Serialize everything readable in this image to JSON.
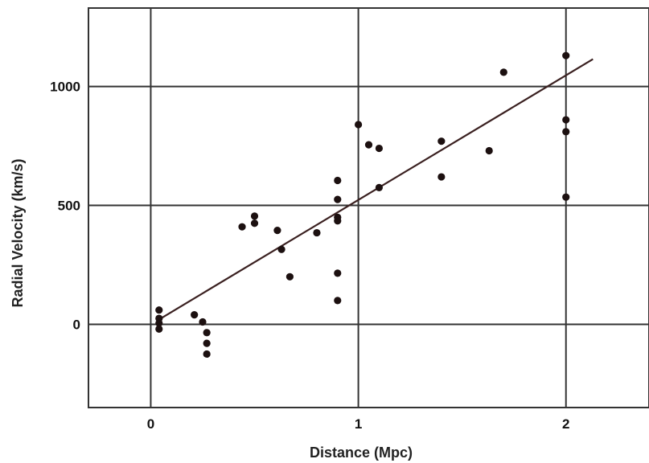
{
  "chart_data": {
    "type": "scatter",
    "xlabel": "Distance (Mpc)",
    "ylabel": "Radial Velocity (km/s)",
    "xlim": [
      -0.3,
      2.4
    ],
    "ylim": [
      -350,
      1330
    ],
    "x_ticks": [
      0,
      1,
      2
    ],
    "y_ticks": [
      0,
      500,
      1000
    ],
    "x_tick_labels": [
      "0",
      "1",
      "2"
    ],
    "y_tick_labels": [
      "0",
      "500",
      "1000"
    ],
    "grid": true,
    "series": [
      {
        "points": [
          {
            "x": 0.04,
            "y": 60
          },
          {
            "x": 0.04,
            "y": 25
          },
          {
            "x": 0.04,
            "y": 5
          },
          {
            "x": 0.04,
            "y": -20
          },
          {
            "x": 0.21,
            "y": 40
          },
          {
            "x": 0.25,
            "y": 10
          },
          {
            "x": 0.27,
            "y": -35
          },
          {
            "x": 0.27,
            "y": -80
          },
          {
            "x": 0.27,
            "y": -125
          },
          {
            "x": 0.44,
            "y": 410
          },
          {
            "x": 0.5,
            "y": 455
          },
          {
            "x": 0.5,
            "y": 425
          },
          {
            "x": 0.61,
            "y": 395
          },
          {
            "x": 0.63,
            "y": 315
          },
          {
            "x": 0.67,
            "y": 200
          },
          {
            "x": 0.8,
            "y": 385
          },
          {
            "x": 0.9,
            "y": 605
          },
          {
            "x": 0.9,
            "y": 525
          },
          {
            "x": 0.9,
            "y": 450
          },
          {
            "x": 0.9,
            "y": 435
          },
          {
            "x": 0.9,
            "y": 215
          },
          {
            "x": 0.9,
            "y": 100
          },
          {
            "x": 1.0,
            "y": 840
          },
          {
            "x": 1.05,
            "y": 755
          },
          {
            "x": 1.1,
            "y": 740
          },
          {
            "x": 1.1,
            "y": 575
          },
          {
            "x": 1.4,
            "y": 770
          },
          {
            "x": 1.4,
            "y": 620
          },
          {
            "x": 1.63,
            "y": 730
          },
          {
            "x": 1.7,
            "y": 1060
          },
          {
            "x": 2.0,
            "y": 1130
          },
          {
            "x": 2.0,
            "y": 860
          },
          {
            "x": 2.0,
            "y": 810
          },
          {
            "x": 2.0,
            "y": 535
          }
        ]
      }
    ],
    "fit_line": {
      "x": [
        0.03,
        2.13
      ],
      "y": [
        15,
        1115
      ]
    }
  }
}
